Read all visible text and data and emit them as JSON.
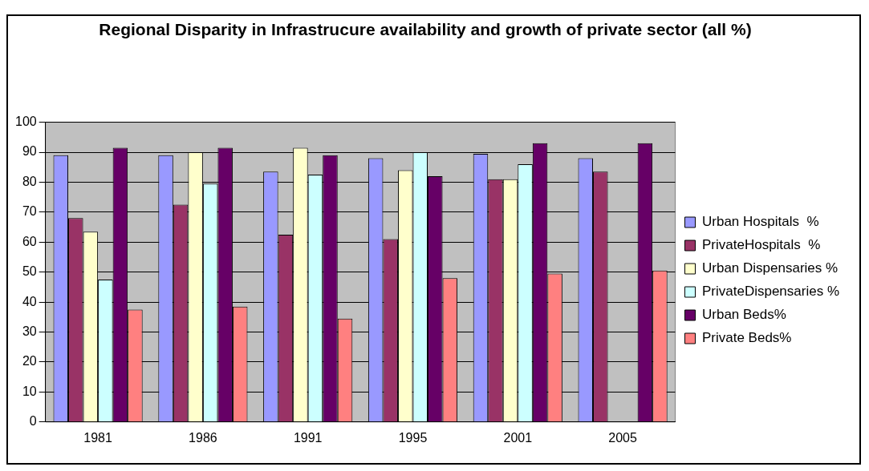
{
  "chart_data": {
    "type": "bar",
    "title": "Regional Disparity in Infrastrucure availability and growth of private sector (all %)",
    "categories": [
      "1981",
      "1986",
      "1991",
      "1995",
      "2001",
      "2005"
    ],
    "series": [
      {
        "name": "Urban Hospitals  %",
        "color": "#9999ff",
        "values": [
          89,
          89,
          83.5,
          88,
          89.5,
          88
        ]
      },
      {
        "name": "PrivateHospitals  %",
        "color": "#993366",
        "values": [
          68,
          72.5,
          62.5,
          61,
          81,
          83.5
        ]
      },
      {
        "name": "Urban Dispensaries %",
        "color": "#ffffcc",
        "values": [
          63.5,
          90,
          91.5,
          84,
          81,
          null
        ]
      },
      {
        "name": "PrivateDispensaries %",
        "color": "#ccffff",
        "values": [
          47.5,
          79.5,
          82.5,
          90,
          86,
          null
        ]
      },
      {
        "name": "Urban Beds%",
        "color": "#660066",
        "values": [
          91.5,
          91.5,
          89,
          82,
          93,
          93
        ]
      },
      {
        "name": "Private Beds%",
        "color": "#ff8080",
        "values": [
          37.5,
          38.5,
          34.5,
          48,
          49.5,
          50.5
        ]
      }
    ],
    "ylim": [
      0,
      100
    ],
    "yticks": [
      0,
      10,
      20,
      30,
      40,
      50,
      60,
      70,
      80,
      90,
      100
    ],
    "grid": "y",
    "legend": "right"
  }
}
